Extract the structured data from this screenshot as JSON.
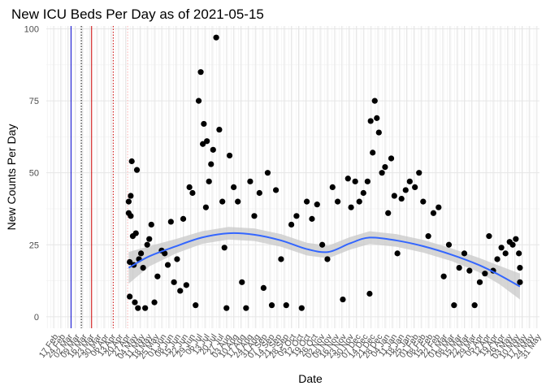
{
  "chart_data": {
    "type": "scatter",
    "title": "New ICU Beds Per Day as of 2021-05-15",
    "xlabel": "Date",
    "ylabel": "New Counts Per Day",
    "xlim": [
      "2020-02-10",
      "2021-06-03"
    ],
    "ylim": [
      -4,
      101
    ],
    "yticks": [
      0,
      25,
      50,
      75,
      100
    ],
    "grid": true,
    "legend": "none",
    "x_tick_dates": [
      "2020-02-17",
      "2020-02-24",
      "2020-03-02",
      "2020-03-09",
      "2020-03-16",
      "2020-03-23",
      "2020-03-30",
      "2020-04-06",
      "2020-04-13",
      "2020-04-20",
      "2020-04-27",
      "2020-05-04",
      "2020-05-11",
      "2020-05-18",
      "2020-05-25",
      "2020-06-01",
      "2020-06-08",
      "2020-06-15",
      "2020-06-22",
      "2020-06-29",
      "2020-07-06",
      "2020-07-13",
      "2020-07-20",
      "2020-07-27",
      "2020-08-03",
      "2020-08-10",
      "2020-08-17",
      "2020-08-24",
      "2020-08-31",
      "2020-09-07",
      "2020-09-14",
      "2020-09-21",
      "2020-09-28",
      "2020-10-05",
      "2020-10-12",
      "2020-10-19",
      "2020-10-26",
      "2020-11-02",
      "2020-11-09",
      "2020-11-16",
      "2020-11-23",
      "2020-11-30",
      "2020-12-07",
      "2020-12-14",
      "2020-12-21",
      "2020-12-28",
      "2021-01-04",
      "2021-01-11",
      "2021-01-18",
      "2021-01-25",
      "2021-02-01",
      "2021-02-08",
      "2021-02-15",
      "2021-02-22",
      "2021-03-01",
      "2021-03-08",
      "2021-03-15",
      "2021-03-22",
      "2021-03-29",
      "2021-04-05",
      "2021-04-12",
      "2021-04-19",
      "2021-04-26",
      "2021-05-03",
      "2021-05-10",
      "2021-05-17",
      "2021-05-24",
      "2021-05-31"
    ],
    "x_tick_labels": [
      "17 Feb",
      "24 Feb",
      "02 Mar",
      "09 Mar",
      "16 Mar",
      "23 Mar",
      "30 Mar",
      "06 Apr",
      "13 Apr",
      "20 Apr",
      "27 Apr",
      "04 May",
      "11 May",
      "18 May",
      "25 May",
      "01 Jun",
      "08 Jun",
      "15 Jun",
      "22 Jun",
      "29 Jun",
      "06 Jul",
      "13 Jul",
      "20 Jul",
      "27 Jul",
      "03 Aug",
      "10 Aug",
      "17 Aug",
      "24 Aug",
      "31 Aug",
      "07 Sep",
      "14 Sep",
      "21 Sep",
      "28 Sep",
      "05 Oct",
      "12 Oct",
      "19 Oct",
      "26 Oct",
      "02 Nov",
      "09 Nov",
      "16 Nov",
      "23 Nov",
      "30 Nov",
      "07 Dec",
      "14 Dec",
      "21 Dec",
      "28 Dec",
      "04 Jan",
      "11 Jan",
      "18 Jan",
      "25 Jan",
      "01 Feb",
      "08 Feb",
      "15 Feb",
      "22 Feb",
      "01 Mar",
      "08 Mar",
      "15 Mar",
      "22 Mar",
      "29 Mar",
      "05 Apr",
      "12 Apr",
      "19 Apr",
      "26 Apr",
      "03 May",
      "10 May",
      "17 May",
      "24 May",
      "31 May"
    ],
    "vlines": [
      {
        "date": "2020-03-05",
        "color": "#0000cc",
        "style": "solid"
      },
      {
        "date": "2020-03-15",
        "color": "#000000",
        "style": "dotted"
      },
      {
        "date": "2020-03-25",
        "color": "#cc0000",
        "style": "solid"
      },
      {
        "date": "2020-04-15",
        "color": "#cc0000",
        "style": "dotted"
      },
      {
        "date": "2020-04-29",
        "color": "#ffb3b3",
        "style": "dotted"
      }
    ],
    "points_color": "#000000",
    "smooth": {
      "color": "#3366ff",
      "band_color": "#c8c8c8",
      "x": [
        "2020-04-30",
        "2020-05-20",
        "2020-06-15",
        "2020-07-10",
        "2020-08-05",
        "2020-08-30",
        "2020-09-25",
        "2020-10-20",
        "2020-11-10",
        "2020-12-01",
        "2020-12-20",
        "2021-01-15",
        "2021-02-10",
        "2021-03-10",
        "2021-04-05",
        "2021-04-25",
        "2021-05-15"
      ],
      "y": [
        17,
        21,
        24.5,
        27.5,
        29,
        28.5,
        26.5,
        23.5,
        22.5,
        25.5,
        27.5,
        26.5,
        24.5,
        21.5,
        18,
        14.5,
        10.5
      ],
      "band_halfwidth": [
        5.5,
        3.5,
        2.5,
        2.2,
        2.2,
        2.2,
        2.2,
        2.2,
        2.2,
        2.2,
        2.2,
        2.2,
        2.2,
        2.2,
        2.5,
        3.2,
        4.5
      ]
    },
    "series": [
      {
        "x": [
          "2020-04-30",
          "2020-04-30",
          "2020-05-01",
          "2020-05-01",
          "2020-05-02",
          "2020-05-02",
          "2020-05-03",
          "2020-05-04",
          "2020-05-05",
          "2020-05-06",
          "2020-05-07",
          "2020-05-08",
          "2020-05-09",
          "2020-05-10",
          "2020-05-12",
          "2020-05-14",
          "2020-05-16",
          "2020-05-18",
          "2020-05-20",
          "2020-05-22",
          "2020-05-25",
          "2020-05-28",
          "2020-06-01",
          "2020-06-04",
          "2020-06-07",
          "2020-06-10",
          "2020-06-13",
          "2020-06-16",
          "2020-06-19",
          "2020-06-22",
          "2020-06-25",
          "2020-06-28",
          "2020-07-01",
          "2020-07-04",
          "2020-07-07",
          "2020-07-09",
          "2020-07-11",
          "2020-07-12",
          "2020-07-14",
          "2020-07-15",
          "2020-07-17",
          "2020-07-19",
          "2020-07-21",
          "2020-07-24",
          "2020-07-27",
          "2020-07-30",
          "2020-08-01",
          "2020-08-03",
          "2020-08-06",
          "2020-08-10",
          "2020-08-14",
          "2020-08-18",
          "2020-08-22",
          "2020-08-26",
          "2020-08-30",
          "2020-09-04",
          "2020-09-08",
          "2020-09-12",
          "2020-09-16",
          "2020-09-20",
          "2020-09-25",
          "2020-09-30",
          "2020-10-05",
          "2020-10-10",
          "2020-10-15",
          "2020-10-20",
          "2020-10-25",
          "2020-10-30",
          "2020-11-04",
          "2020-11-09",
          "2020-11-14",
          "2020-11-19",
          "2020-11-24",
          "2020-11-29",
          "2020-12-02",
          "2020-12-06",
          "2020-12-10",
          "2020-12-14",
          "2020-12-18",
          "2020-12-20",
          "2020-12-21",
          "2020-12-23",
          "2020-12-25",
          "2020-12-27",
          "2020-12-29",
          "2021-01-01",
          "2021-01-04",
          "2021-01-07",
          "2021-01-10",
          "2021-01-13",
          "2021-01-16",
          "2021-01-20",
          "2021-01-24",
          "2021-01-28",
          "2021-02-02",
          "2021-02-06",
          "2021-02-10",
          "2021-02-15",
          "2021-02-20",
          "2021-02-25",
          "2021-03-02",
          "2021-03-07",
          "2021-03-12",
          "2021-03-17",
          "2021-03-22",
          "2021-03-27",
          "2021-04-01",
          "2021-04-06",
          "2021-04-11",
          "2021-04-15",
          "2021-04-19",
          "2021-04-23",
          "2021-04-27",
          "2021-05-01",
          "2021-05-05",
          "2021-05-08",
          "2021-05-11",
          "2021-05-14",
          "2021-05-15",
          "2021-05-15"
        ],
        "y": [
          40,
          36,
          19,
          7,
          42,
          35,
          54,
          28,
          18,
          5,
          29,
          51,
          3,
          20,
          22,
          17,
          3,
          25,
          27,
          32,
          5,
          14,
          23,
          22,
          18,
          33,
          12,
          20,
          9,
          34,
          11,
          45,
          43,
          4,
          75,
          85,
          60,
          67,
          38,
          61,
          47,
          53,
          58,
          97,
          65,
          40,
          24,
          3,
          56,
          45,
          40,
          12,
          3,
          47,
          35,
          43,
          10,
          50,
          4,
          44,
          20,
          4,
          32,
          35,
          3,
          40,
          34,
          39,
          25,
          20,
          45,
          40,
          6,
          48,
          38,
          47,
          40,
          43,
          47,
          8,
          68,
          57,
          75,
          69,
          64,
          50,
          52,
          36,
          55,
          42,
          22,
          41,
          44,
          47,
          45,
          50,
          40,
          28,
          36,
          38,
          14,
          25,
          4,
          17,
          22,
          16,
          4,
          12,
          15,
          28,
          16,
          20,
          24,
          22,
          26,
          25,
          27,
          22,
          17,
          12
        ],
        "note": ""
      }
    ]
  }
}
